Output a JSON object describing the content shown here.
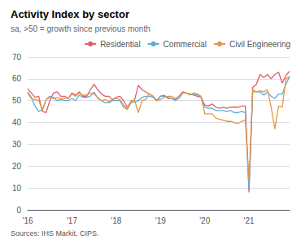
{
  "chart_data": {
    "type": "line",
    "title": "Activity Index by sector",
    "subtitle": "sa, >50 = growth since previous month",
    "annotations": [
      "Sources: IHS Markit, CIPS."
    ],
    "categories": [
      "'16",
      null,
      null,
      null,
      null,
      null,
      null,
      null,
      null,
      null,
      null,
      null,
      "'17",
      null,
      null,
      null,
      null,
      null,
      null,
      null,
      null,
      null,
      null,
      null,
      "'18",
      null,
      null,
      null,
      null,
      null,
      null,
      null,
      null,
      null,
      null,
      null,
      "'19",
      null,
      null,
      null,
      null,
      null,
      null,
      null,
      null,
      null,
      null,
      null,
      "'20",
      null,
      null,
      null,
      null,
      null,
      null,
      null,
      null,
      null,
      null,
      null,
      "'21",
      null,
      null,
      null,
      null,
      null,
      null,
      null,
      null,
      null,
      null,
      null
    ],
    "series": [
      {
        "name": "Residential",
        "color": "#e05c6e",
        "values": [
          55.5,
          53.5,
          51.5,
          52.0,
          45.0,
          44.5,
          50.0,
          53.5,
          54.0,
          52.0,
          52.0,
          51.0,
          53.5,
          52.5,
          54.0,
          52.0,
          52.0,
          55.0,
          57.5,
          55.0,
          53.0,
          52.0,
          52.0,
          50.5,
          51.5,
          52.0,
          50.0,
          47.0,
          49.5,
          50.5,
          57.0,
          55.0,
          54.0,
          53.0,
          52.0,
          50.0,
          52.0,
          52.5,
          51.0,
          51.0,
          50.5,
          52.0,
          54.0,
          53.5,
          53.0,
          52.5,
          52.0,
          51.5,
          48.0,
          47.5,
          48.5,
          47.0,
          46.5,
          47.0,
          46.5,
          47.0,
          47.0,
          47.0,
          47.5,
          47.5,
          8.0,
          56.0,
          57.5,
          62.0,
          60.5,
          62.0,
          60.0,
          62.0,
          63.0,
          58.0,
          61.5,
          63.5
        ]
      },
      {
        "name": "Commercial",
        "color": "#5bacd8",
        "values": [
          54.0,
          51.5,
          47.5,
          45.0,
          46.0,
          50.5,
          52.0,
          51.5,
          50.0,
          50.5,
          50.0,
          50.0,
          51.0,
          50.0,
          52.5,
          51.5,
          51.5,
          52.0,
          54.0,
          51.0,
          50.0,
          49.0,
          49.0,
          50.0,
          50.0,
          50.0,
          47.0,
          46.0,
          49.0,
          49.5,
          50.0,
          51.5,
          52.0,
          52.0,
          51.5,
          50.0,
          52.0,
          52.0,
          51.5,
          51.0,
          50.0,
          51.0,
          53.5,
          53.5,
          53.0,
          53.0,
          52.5,
          51.5,
          47.0,
          46.5,
          46.5,
          45.5,
          45.5,
          45.5,
          45.0,
          45.5,
          44.5,
          44.5,
          45.0,
          44.5,
          9.0,
          54.0,
          54.0,
          54.0,
          52.5,
          54.0,
          52.0,
          51.0,
          53.0,
          53.0,
          57.5,
          61.0
        ]
      },
      {
        "name": "Civil Engineering",
        "color": "#e8963c",
        "values": [
          53.5,
          51.0,
          50.5,
          50.0,
          45.5,
          50.5,
          51.5,
          51.0,
          51.5,
          51.0,
          51.0,
          51.0,
          53.0,
          52.0,
          53.5,
          52.5,
          52.5,
          53.5,
          53.0,
          51.5,
          50.0,
          50.5,
          49.5,
          50.5,
          51.0,
          50.5,
          48.0,
          46.0,
          50.0,
          50.0,
          44.5,
          50.0,
          50.5,
          53.0,
          52.0,
          50.0,
          50.5,
          51.5,
          52.0,
          52.0,
          51.0,
          52.0,
          53.5,
          53.5,
          52.5,
          53.5,
          53.0,
          52.0,
          44.0,
          44.0,
          44.0,
          42.0,
          41.5,
          41.0,
          40.5,
          40.5,
          40.0,
          39.5,
          40.5,
          41.0,
          13.5,
          55.0,
          54.0,
          54.5,
          54.0,
          55.0,
          47.0,
          37.0,
          47.5,
          47.0,
          60.0,
          61.0
        ]
      }
    ],
    "ylim": [
      0,
      70
    ],
    "yticks": [
      0,
      10,
      20,
      30,
      40,
      50,
      60,
      70
    ],
    "grid": true,
    "legend": "right"
  }
}
